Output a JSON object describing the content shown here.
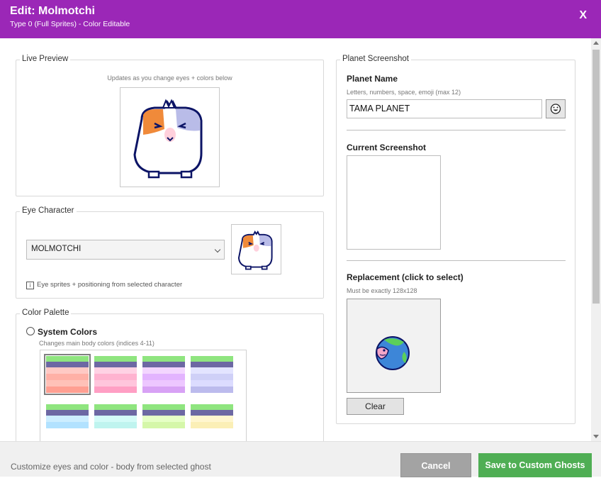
{
  "header": {
    "title": "Edit: Molmotchi",
    "subtitle": "Type 0 (Full Sprites) - Color Editable",
    "close_label": "X"
  },
  "live_preview": {
    "legend": "Live Preview",
    "note": "Updates as you change eyes + colors below"
  },
  "eye_character": {
    "legend": "Eye Character",
    "selected": "MOLMOTCHI",
    "info_text": "Eye sprites + positioning from selected character"
  },
  "color_palette": {
    "legend": "Color Palette",
    "option_label": "System Colors",
    "option_note": "Changes main body colors (indices 4-11)",
    "swatches": [
      {
        "bars": [
          "#8fe57f",
          "#6d68a3",
          "#ffc9c4",
          "#ffb0a6",
          "#ffc1b8",
          "#ff9f92"
        ]
      },
      {
        "bars": [
          "#8fe57f",
          "#6d68a3",
          "#ffd2e4",
          "#ffb3d0",
          "#ffc5dc",
          "#ff9fc4"
        ]
      },
      {
        "bars": [
          "#8fe57f",
          "#6d68a3",
          "#f3d6ff",
          "#e3b4ff",
          "#edc7ff",
          "#d8a2f5"
        ]
      },
      {
        "bars": [
          "#8fe57f",
          "#6d68a3",
          "#e3e4ff",
          "#cfd0f7",
          "#dcdcff",
          "#bcbbed"
        ]
      },
      {
        "bars": [
          "#8fe57f",
          "#6d68a3",
          "#cdeeff",
          "#b2e2ff"
        ]
      },
      {
        "bars": [
          "#8fe57f",
          "#6d68a3",
          "#d4fbf8",
          "#bff4ef"
        ]
      },
      {
        "bars": [
          "#8fe57f",
          "#6d68a3",
          "#e6ffc6",
          "#d5f7a9"
        ]
      },
      {
        "bars": [
          "#8fe57f",
          "#6d68a3",
          "#fff6cf",
          "#fbefb6"
        ]
      }
    ]
  },
  "planet": {
    "legend": "Planet Screenshot",
    "name_label": "Planet Name",
    "name_hint": "Letters, numbers, space, emoji (max 12)",
    "name_value": "TAMA PLANET",
    "current_label": "Current Screenshot",
    "replacement_label": "Replacement (click to select)",
    "replacement_hint": "Must be exactly 128x128",
    "clear_label": "Clear"
  },
  "footer": {
    "status": "Customize eyes and color - body from selected ghost",
    "cancel_label": "Cancel",
    "save_label": "Save to Custom Ghosts"
  },
  "colors": {
    "header": "#9b27b7",
    "save": "#4fae54",
    "cancel": "#a3a3a3"
  }
}
